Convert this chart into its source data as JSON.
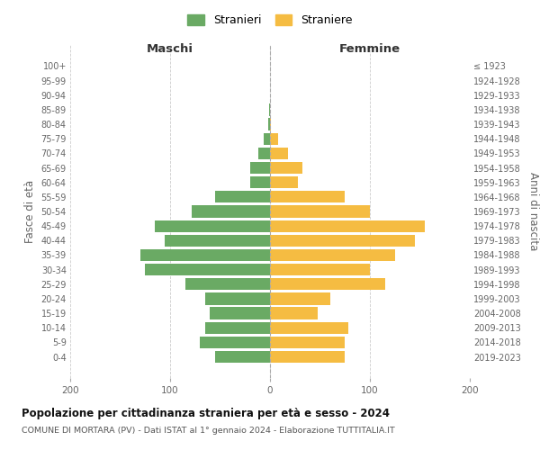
{
  "age_groups": [
    "0-4",
    "5-9",
    "10-14",
    "15-19",
    "20-24",
    "25-29",
    "30-34",
    "35-39",
    "40-44",
    "45-49",
    "50-54",
    "55-59",
    "60-64",
    "65-69",
    "70-74",
    "75-79",
    "80-84",
    "85-89",
    "90-94",
    "95-99",
    "100+"
  ],
  "birth_years": [
    "2019-2023",
    "2014-2018",
    "2009-2013",
    "2004-2008",
    "1999-2003",
    "1994-1998",
    "1989-1993",
    "1984-1988",
    "1979-1983",
    "1974-1978",
    "1969-1973",
    "1964-1968",
    "1959-1963",
    "1954-1958",
    "1949-1953",
    "1944-1948",
    "1939-1943",
    "1934-1938",
    "1929-1933",
    "1924-1928",
    "≤ 1923"
  ],
  "males": [
    55,
    70,
    65,
    60,
    65,
    85,
    125,
    130,
    105,
    115,
    78,
    55,
    20,
    20,
    12,
    6,
    2,
    1,
    0,
    0,
    0
  ],
  "females": [
    75,
    75,
    78,
    48,
    60,
    115,
    100,
    125,
    145,
    155,
    100,
    75,
    28,
    32,
    18,
    8,
    1,
    0,
    0,
    0,
    0
  ],
  "male_color": "#6aaa64",
  "female_color": "#f5bc42",
  "background_color": "#ffffff",
  "grid_color": "#cccccc",
  "title": "Popolazione per cittadinanza straniera per età e sesso - 2024",
  "subtitle": "COMUNE DI MORTARA (PV) - Dati ISTAT al 1° gennaio 2024 - Elaborazione TUTTITALIA.IT",
  "male_label": "Stranieri",
  "female_label": "Straniere",
  "left_header": "Maschi",
  "right_header": "Femmine",
  "ylabel_left": "Fasce di età",
  "ylabel_right": "Anni di nascita",
  "xlim": 200
}
